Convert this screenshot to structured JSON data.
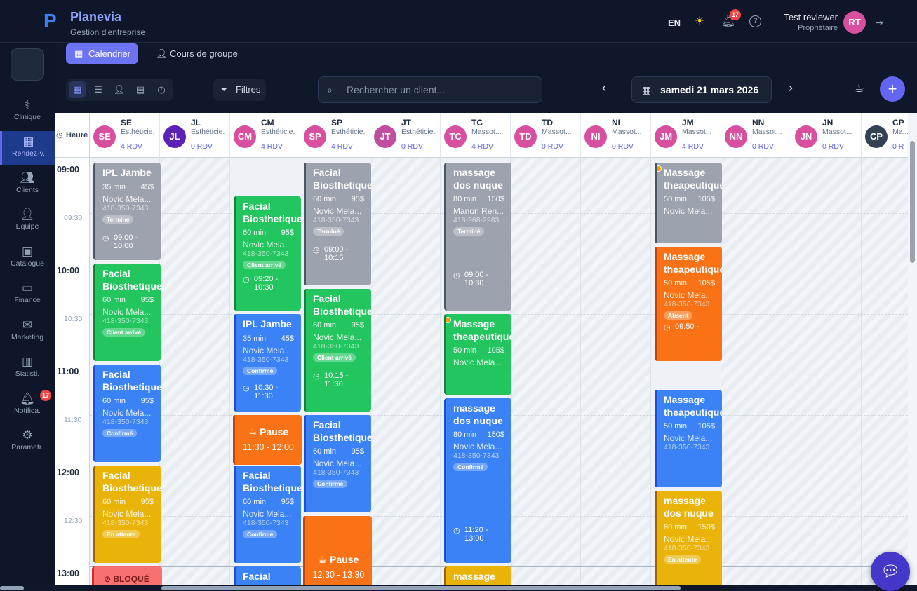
{
  "app": {
    "name": "Planevia",
    "subtitle": "Gestion d'entreprise"
  },
  "header": {
    "lang": "EN",
    "notif_count": "17",
    "user_name": "Test reviewer",
    "user_role": "Propriétaire",
    "user_initials": "RT"
  },
  "sidebar": {
    "items": [
      {
        "label": "Clinique",
        "icon": "stethoscope-icon"
      },
      {
        "label": "Rendez-v.",
        "icon": "calendar-icon"
      },
      {
        "label": "Clients",
        "icon": "users-icon"
      },
      {
        "label": "Equipe",
        "icon": "team-icon"
      },
      {
        "label": "Catalogue",
        "icon": "catalog-icon"
      },
      {
        "label": "Finance",
        "icon": "wallet-icon"
      },
      {
        "label": "Marketing",
        "icon": "mail-icon"
      },
      {
        "label": "Statisti.",
        "icon": "chart-icon"
      },
      {
        "label": "Notifica.",
        "icon": "bell-icon"
      },
      {
        "label": "Parametr.",
        "icon": "gear-icon"
      }
    ],
    "notif_badge": "17"
  },
  "tabs": {
    "calendar": "Calendrier",
    "group": "Cours de groupe"
  },
  "toolbar": {
    "filters": "Filtres",
    "search_placeholder": "Rechercher un client...",
    "date": "samedi 21 mars 2026"
  },
  "grid": {
    "time_header": "Heure",
    "hours": [
      "09:00",
      "10:00",
      "11:00",
      "12:00",
      "13:00"
    ],
    "halves": [
      "09:30",
      "10:30",
      "11:30",
      "12:30"
    ],
    "staff": [
      {
        "initials": "SE",
        "role": "Esthéticie.",
        "rdv": "4 RDV",
        "color": "#d84f9f"
      },
      {
        "initials": "JL",
        "role": "Esthéticie.",
        "rdv": "0 RDV",
        "color": "#5b21b6"
      },
      {
        "initials": "CM",
        "role": "Esthéticie.",
        "rdv": "4 RDV",
        "color": "#d84f9f"
      },
      {
        "initials": "SP",
        "role": "Esthéticie.",
        "rdv": "4 RDV",
        "color": "#d84f9f"
      },
      {
        "initials": "JT",
        "role": "Esthéticie.",
        "rdv": "0 RDV",
        "color": "#c04da0"
      },
      {
        "initials": "TC",
        "role": "Massot...",
        "rdv": "4 RDV",
        "color": "#d84f9f"
      },
      {
        "initials": "TD",
        "role": "Massot...",
        "rdv": "0 RDV",
        "color": "#d84f9f"
      },
      {
        "initials": "NI",
        "role": "Massot...",
        "rdv": "0 RDV",
        "color": "#d84f9f"
      },
      {
        "initials": "JM",
        "role": "Massot...",
        "rdv": "4 RDV",
        "color": "#d84f9f"
      },
      {
        "initials": "NN",
        "role": "Massot...",
        "rdv": "0 RDV",
        "color": "#d84f9f"
      },
      {
        "initials": "JN",
        "role": "Massot...",
        "rdv": "0 RDV",
        "color": "#d84f9f"
      },
      {
        "initials": "CP",
        "role": "Ma...",
        "rdv": "0 R",
        "color": "#334155"
      }
    ]
  },
  "events": {
    "se1": {
      "title": "IPL Jambe",
      "dur": "35 min",
      "price": "45$",
      "client": "Novic Mela...",
      "phone": "418-350-7343",
      "status": "Terminé",
      "time": "09:00 - 10:00"
    },
    "se2": {
      "title": "Facial Biosthetique",
      "dur": "60 min",
      "price": "95$",
      "client": "Novic Mela...",
      "phone": "418-350-7343",
      "status": "Client arrivé"
    },
    "se3": {
      "title": "Facial Biosthetique",
      "dur": "60 min",
      "price": "95$",
      "client": "Novic Mela...",
      "phone": "418-350-7343",
      "status": "Confirmé"
    },
    "se4": {
      "title": "Facial Biosthetique",
      "dur": "60 min",
      "price": "95$",
      "client": "Novic Mela...",
      "phone": "418-350-7343",
      "status": "En attente"
    },
    "se5": {
      "title": "BLOQUÉ"
    },
    "cm1": {
      "title": "Facial Biosthetique",
      "dur": "60 min",
      "price": "95$",
      "client": "Novic Mela...",
      "phone": "418-350-7343",
      "status": "Client arrivé",
      "time": "09:20 - 10:30"
    },
    "cm2": {
      "title": "IPL Jambe",
      "dur": "35 min",
      "price": "45$",
      "client": "Novic Mela...",
      "phone": "418-350-7343",
      "status": "Confirmé",
      "time": "10:30 - 11:30"
    },
    "cm3": {
      "title": "Pause",
      "time": "11:30 - 12:00"
    },
    "cm4": {
      "title": "Facial Biosthetique",
      "dur": "60 min",
      "price": "95$",
      "client": "Novic Mela...",
      "phone": "418-350-7343",
      "status": "Confirmé"
    },
    "cm5": {
      "title": "Facial"
    },
    "sp1": {
      "title": "Facial Biosthetique",
      "dur": "60 min",
      "price": "95$",
      "client": "Novic Mela...",
      "phone": "418-350-7343",
      "status": "Terminé",
      "time": "09:00 - 10:15"
    },
    "sp2": {
      "title": "Facial Biosthetique",
      "dur": "60 min",
      "price": "95$",
      "client": "Novic Mela...",
      "phone": "418-350-7343",
      "status": "Client arrivé",
      "time": "10:15 - 11:30"
    },
    "sp3": {
      "title": "Facial Biosthetique",
      "dur": "60 min",
      "price": "95$",
      "client": "Novic Mela...",
      "phone": "418-350-7343",
      "status": "Confirmé"
    },
    "sp4": {
      "title": "Pause",
      "time": "12:30 - 13:30"
    },
    "tc1": {
      "title": "massage dos nuque",
      "dur": "80 min",
      "price": "150$",
      "client": "Manon Ren...",
      "phone": "418-968-2983",
      "status": "Terminé",
      "time": "09:00 - 10:30"
    },
    "tc2": {
      "title": "Massage theapeutique",
      "dur": "50 min",
      "price": "105$",
      "client": "Novic Mela..."
    },
    "tc3": {
      "title": "massage dos nuque",
      "dur": "80 min",
      "price": "150$",
      "client": "Novic Mela...",
      "phone": "418-350-7343",
      "status": "Confirmé",
      "time": "11:20 - 13:00"
    },
    "tc4": {
      "title": "massage"
    },
    "jm1": {
      "title": "Massage theapeutique",
      "dur": "50 min",
      "price": "105$",
      "client": "Novic Mela..."
    },
    "jm2": {
      "title": "Massage theapeutique",
      "dur": "50 min",
      "price": "105$",
      "client": "Novic Mela...",
      "phone": "418-350-7343",
      "status": "Absent",
      "time": "09:50 -"
    },
    "jm3": {
      "title": "Massage theapeutique",
      "dur": "50 min",
      "price": "105$",
      "client": "Novic Mela...",
      "phone": "418-350-7343"
    },
    "jm4": {
      "title": "massage dos nuque",
      "dur": "80 min",
      "price": "150$",
      "client": "Novic Mela...",
      "phone": "418-350-7343",
      "status": "En attente"
    }
  }
}
